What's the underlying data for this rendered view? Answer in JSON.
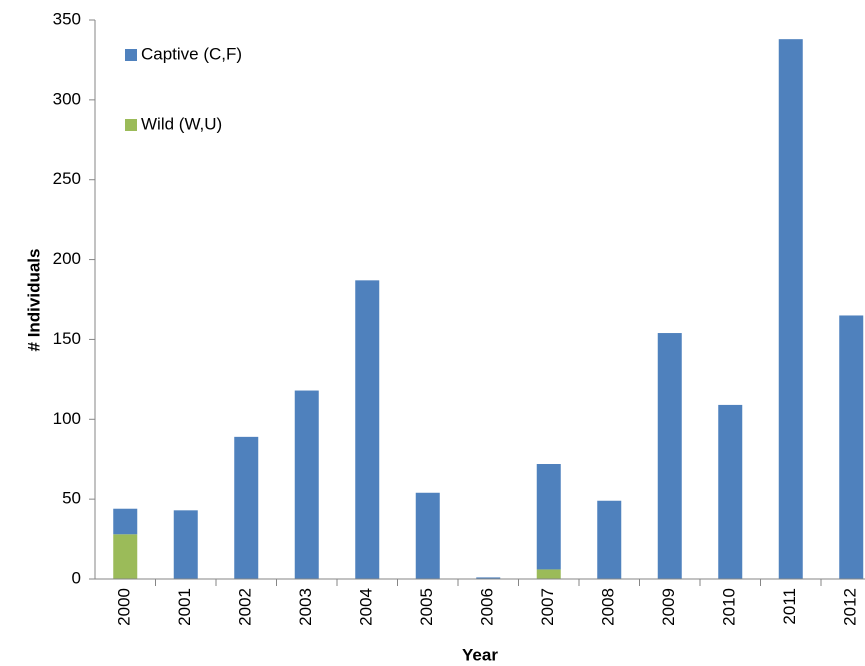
{
  "chart_data": {
    "type": "stacked_bar",
    "x_label": "Year",
    "y_label": "# Individuals",
    "categories": [
      "2000",
      "2001",
      "2002",
      "2003",
      "2004",
      "2005",
      "2006",
      "2007",
      "2008",
      "2009",
      "2010",
      "2011",
      "2012"
    ],
    "series": [
      {
        "name": "Wild (W,U)",
        "color": "#9bbb59",
        "values": [
          28,
          0,
          0,
          0,
          0,
          0,
          0,
          6,
          0,
          0,
          0,
          0,
          0
        ]
      },
      {
        "name": "Captive (C,F)",
        "color": "#4f81bd",
        "values": [
          16,
          43,
          89,
          118,
          187,
          54,
          1,
          66,
          49,
          154,
          109,
          338,
          165
        ]
      }
    ],
    "ylim": [
      0,
      350
    ],
    "yticks": [
      0,
      50,
      100,
      150,
      200,
      250,
      300,
      350
    ],
    "grid": false,
    "legend": "top-left"
  }
}
